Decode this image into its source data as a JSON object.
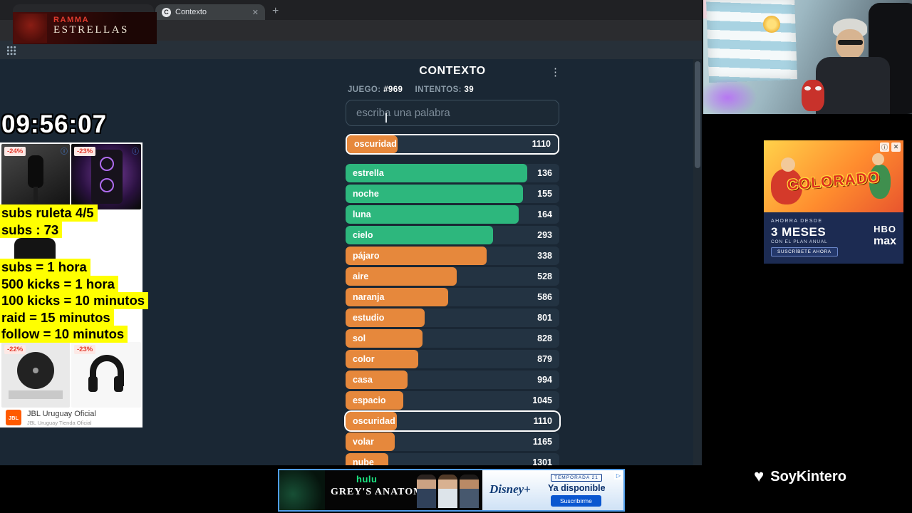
{
  "icons": {
    "close": "✕",
    "new_tab": "+",
    "kebab": "⋮",
    "info": "ⓘ",
    "adchoices": "▷",
    "favicon": "C",
    "heart": "♥"
  },
  "browser": {
    "tab_title": "Contexto"
  },
  "ramma": {
    "top": "RAMMA",
    "bottom": "ESTRELLAS"
  },
  "stream": {
    "timer": "09:56:07",
    "subs_lines": [
      "subs ruleta 4/5",
      "subs : 73"
    ],
    "rules_lines": [
      "subs = 1 hora",
      "500 kicks = 1 hora",
      "100 kicks = 10 minutos",
      "raid = 15 minutos",
      "follow = 10 minutos"
    ],
    "watermark": "SoyKintero"
  },
  "contexto": {
    "title": "CONTEXTO",
    "game_label": "JUEGO:",
    "game_number": "#969",
    "tries_label": "INTENTOS:",
    "tries_value": "39",
    "input_placeholder": "escriba una palabra",
    "pinned_guess": {
      "word": "oscuridad",
      "rank": "1110",
      "color": "orange",
      "width": "24%"
    },
    "guesses": [
      {
        "word": "estrella",
        "rank": "136",
        "color": "green",
        "width": "85%"
      },
      {
        "word": "noche",
        "rank": "155",
        "color": "green",
        "width": "83%"
      },
      {
        "word": "luna",
        "rank": "164",
        "color": "green",
        "width": "81%"
      },
      {
        "word": "cielo",
        "rank": "293",
        "color": "green",
        "width": "69%"
      },
      {
        "word": "pájaro",
        "rank": "338",
        "color": "orange",
        "width": "66%"
      },
      {
        "word": "aire",
        "rank": "528",
        "color": "orange",
        "width": "52%"
      },
      {
        "word": "naranja",
        "rank": "586",
        "color": "orange",
        "width": "48%"
      },
      {
        "word": "estudio",
        "rank": "801",
        "color": "orange",
        "width": "37%"
      },
      {
        "word": "sol",
        "rank": "828",
        "color": "orange",
        "width": "36%"
      },
      {
        "word": "color",
        "rank": "879",
        "color": "orange",
        "width": "34%"
      },
      {
        "word": "casa",
        "rank": "994",
        "color": "orange",
        "width": "29%"
      },
      {
        "word": "espacio",
        "rank": "1045",
        "color": "orange",
        "width": "27%"
      },
      {
        "word": "oscuridad",
        "rank": "1110",
        "color": "orange",
        "width": "24%",
        "highlight": "highlight"
      },
      {
        "word": "volar",
        "rank": "1165",
        "color": "orange",
        "width": "23%"
      },
      {
        "word": "nube",
        "rank": "1301",
        "color": "orange",
        "width": "20%"
      }
    ],
    "colors": {
      "green": "#2db77d",
      "orange": "#e6883c",
      "background": "#1a2734"
    }
  },
  "left_ad": {
    "products": [
      {
        "badge": "-24%",
        "kind": "microphone"
      },
      {
        "badge": "-23%",
        "kind": "party-speaker"
      },
      {
        "badge": "-22%",
        "kind": "turntable"
      },
      {
        "badge": "-23%",
        "kind": "headphones"
      }
    ],
    "logo_text": "JBL",
    "store_name": "JBL Uruguay Oficial",
    "store_subtitle": "JBL Uruguay Tienda Oficial"
  },
  "right_ad": {
    "comic_title": "COLORADO",
    "promo_line1": "AHORRA DESDE",
    "promo_line2": "3 MESES",
    "promo_line3": "CON EL PLAN ANUAL",
    "cta": "SUSCRÍBETE AHORA",
    "brand_top": "HBO",
    "brand_bottom": "max"
  },
  "bottom_ad": {
    "hulu": "hulu",
    "show_title": "GREY'S ANATOMY",
    "disney_logo": "Disney+",
    "season_badge": "TEMPORADA 21",
    "available_text": "Ya disponible",
    "cta": "Suscribirme"
  }
}
